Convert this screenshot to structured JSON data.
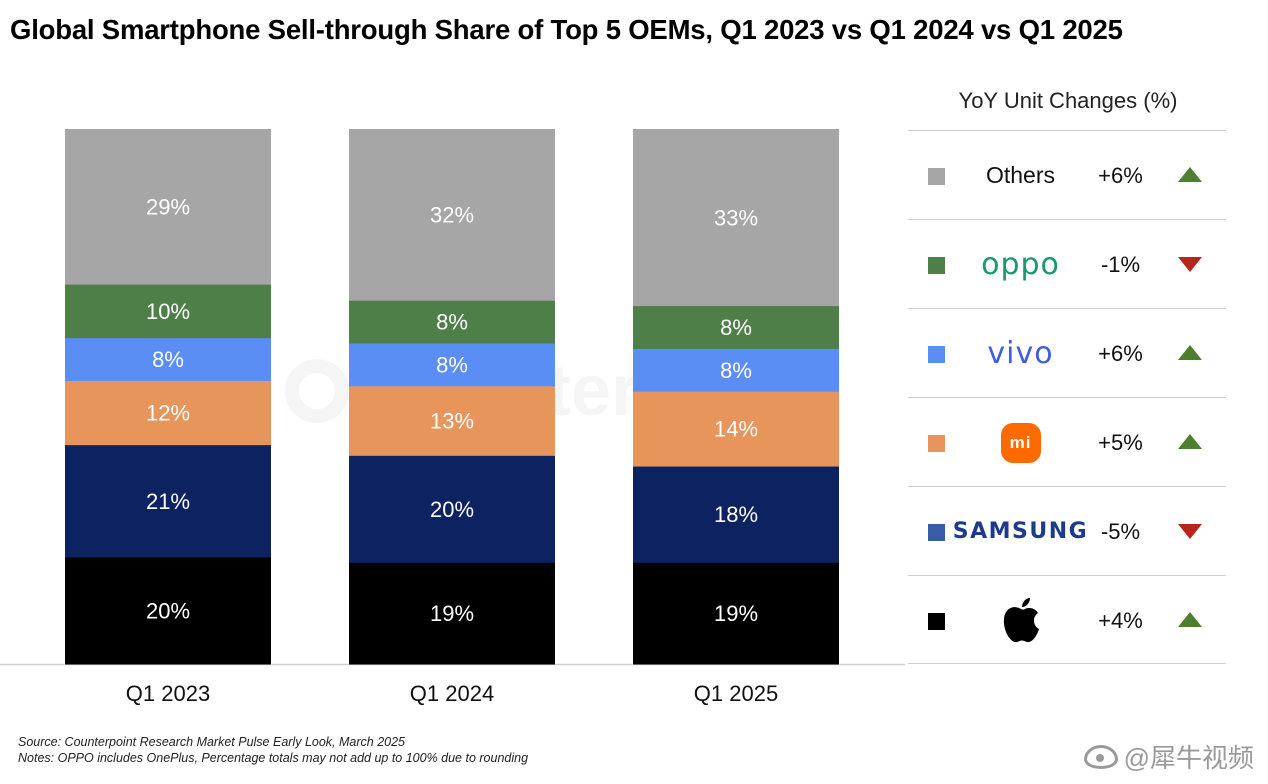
{
  "title": "Global Smartphone Sell-through Share of Top 5 OEMs, Q1 2023 vs Q1 2024 vs Q1 2025",
  "watermark": "Counterpoint",
  "chart_data": {
    "type": "bar",
    "stacked": true,
    "title": "Global Smartphone Sell-through Share of Top 5 OEMs, Q1 2023 vs Q1 2024 vs Q1 2025",
    "xlabel": "",
    "ylabel": "",
    "ylim": [
      0,
      100
    ],
    "categories": [
      "Q1 2023",
      "Q1 2024",
      "Q1 2025"
    ],
    "series": [
      {
        "name": "Apple",
        "color": "#000000",
        "values": [
          20,
          19,
          19
        ],
        "labels": [
          "20%",
          "19%",
          "19%"
        ]
      },
      {
        "name": "Samsung",
        "color": "#0d2361",
        "values": [
          21,
          20,
          18
        ],
        "labels": [
          "21%",
          "20%",
          "18%"
        ]
      },
      {
        "name": "Xiaomi",
        "color": "#e8955b",
        "values": [
          12,
          13,
          14
        ],
        "labels": [
          "12%",
          "13%",
          "14%"
        ]
      },
      {
        "name": "vivo",
        "color": "#5b8ef5",
        "values": [
          8,
          8,
          8
        ],
        "labels": [
          "8%",
          "8%",
          "8%"
        ]
      },
      {
        "name": "OPPO",
        "color": "#4e7f48",
        "values": [
          10,
          8,
          8
        ],
        "labels": [
          "10%",
          "8%",
          "8%"
        ]
      },
      {
        "name": "Others",
        "color": "#a6a6a6",
        "values": [
          29,
          32,
          33
        ],
        "labels": [
          "29%",
          "32%",
          "33%"
        ]
      }
    ]
  },
  "legend": {
    "heading": "YoY Unit Changes (%)",
    "rows": [
      {
        "brand": "Others",
        "logo": "text",
        "label": "Others",
        "swatch": "#a6a6a6",
        "change": "+6%",
        "direction": "up"
      },
      {
        "brand": "OPPO",
        "logo": "oppo-logo",
        "label": "oppo",
        "swatch": "#4e7f48",
        "change": "-1%",
        "direction": "down"
      },
      {
        "brand": "vivo",
        "logo": "vivo-logo",
        "label": "vivo",
        "swatch": "#5b8ef5",
        "change": "+6%",
        "direction": "up"
      },
      {
        "brand": "Xiaomi",
        "logo": "xiaomi-logo",
        "label": "mi",
        "swatch": "#e8955b",
        "change": "+5%",
        "direction": "up"
      },
      {
        "brand": "Samsung",
        "logo": "samsung-logo",
        "label": "SAMSUNG",
        "swatch": "#3a5ba8",
        "change": "-5%",
        "direction": "down"
      },
      {
        "brand": "Apple",
        "logo": "apple-logo",
        "label": "",
        "swatch": "#000000",
        "change": "+4%",
        "direction": "up"
      }
    ],
    "up_color": "#4e7f2e",
    "down_color": "#b8251d"
  },
  "notes": {
    "source": "Source: Counterpoint Research Market Pulse Early Look, March 2025",
    "note": "Notes: OPPO includes OnePlus, Percentage totals may not add up to 100% due to rounding"
  },
  "credit": "@犀牛视频"
}
